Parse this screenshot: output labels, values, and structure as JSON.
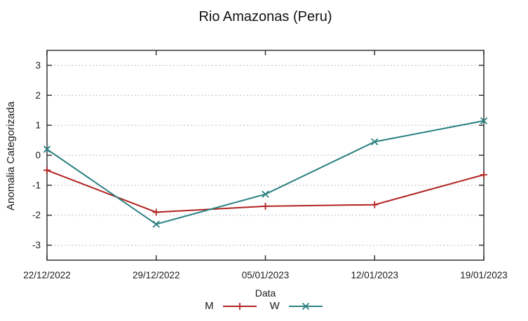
{
  "title": "Rio Amazonas (Peru)",
  "chart_data": {
    "type": "line",
    "title": "Rio Amazonas (Peru)",
    "xlabel": "Data",
    "ylabel": "Anomalia Categorizada",
    "categories": [
      "22/12/2022",
      "29/12/2022",
      "05/01/2023",
      "12/01/2023",
      "19/01/2023"
    ],
    "ylim": [
      -3.5,
      3.5
    ],
    "yticks": [
      -3,
      -2,
      -1,
      0,
      1,
      2,
      3
    ],
    "grid": "horizontal-dotted",
    "legend_position": "bottom-center",
    "series": [
      {
        "name": "M",
        "color": "#b22222",
        "marker": "plus",
        "values": [
          -0.5,
          -1.9,
          -1.7,
          -1.65,
          -0.65
        ]
      },
      {
        "name": "W",
        "color": "#2a8080",
        "marker": "cross",
        "values": [
          0.2,
          -2.3,
          -1.3,
          0.45,
          1.15
        ]
      }
    ]
  },
  "colors": {
    "background": "#ffffff",
    "border": "#333333",
    "grid": "#bbbbbb",
    "text": "#1a1a1a"
  }
}
